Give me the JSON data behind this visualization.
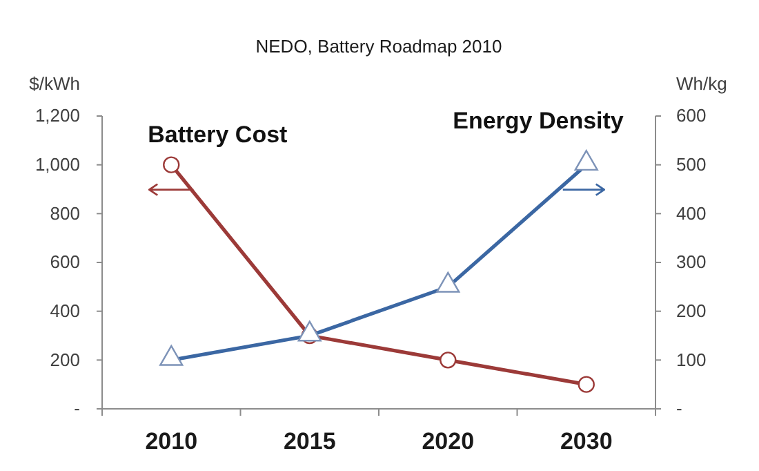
{
  "chart_data": {
    "type": "line",
    "title": "NEDO, Battery Roadmap 2010",
    "ylabel": "$/kWh",
    "y2label": "Wh/kg",
    "categories": [
      "2010",
      "2015",
      "2020",
      "2030"
    ],
    "series": [
      {
        "name": "Battery Cost",
        "color": "#9c3a38",
        "values": [
          1000,
          300,
          200,
          100
        ],
        "marker": "circle"
      },
      {
        "name": "Energy Density",
        "color": "#3b67a3",
        "values": [
          100,
          150,
          250,
          500
        ],
        "axis": "y2",
        "marker": "triangle"
      }
    ],
    "ylim": [
      0,
      1200
    ],
    "yticks": [
      {
        "value": 0,
        "label": "-"
      },
      200,
      400,
      600,
      800,
      {
        "value": 1000,
        "label": "1,000"
      },
      {
        "value": 1200,
        "label": "1,200"
      }
    ],
    "y2lim": [
      0,
      600
    ],
    "y2ticks": [
      {
        "value": 0,
        "label": "-"
      },
      100,
      200,
      300,
      400,
      500,
      600
    ]
  }
}
